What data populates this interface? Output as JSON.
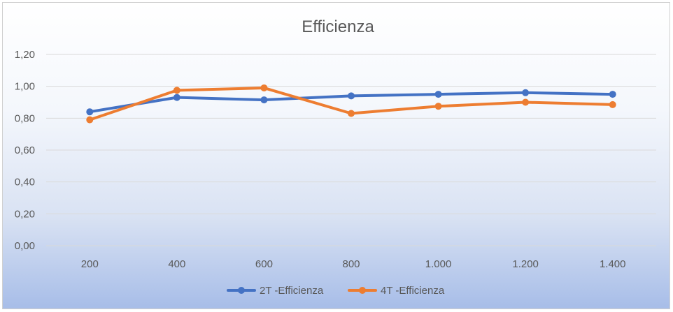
{
  "chart_data": {
    "type": "line",
    "title": "Efficienza",
    "categories": [
      "200",
      "400",
      "600",
      "800",
      "1.000",
      "1.200",
      "1.400"
    ],
    "ylim": [
      0,
      1.2
    ],
    "yticks": [
      "0,00",
      "0,20",
      "0,40",
      "0,60",
      "0,80",
      "1,00",
      "1,20"
    ],
    "grid": true,
    "legend_position": "bottom",
    "series": [
      {
        "name": "2T -Efficienza",
        "color": "#4472C4",
        "values": [
          0.84,
          0.93,
          0.915,
          0.94,
          0.95,
          0.96,
          0.95
        ]
      },
      {
        "name": "4T -Efficienza",
        "color": "#ED7D31",
        "values": [
          0.79,
          0.975,
          0.99,
          0.83,
          0.875,
          0.9,
          0.885
        ]
      }
    ]
  }
}
